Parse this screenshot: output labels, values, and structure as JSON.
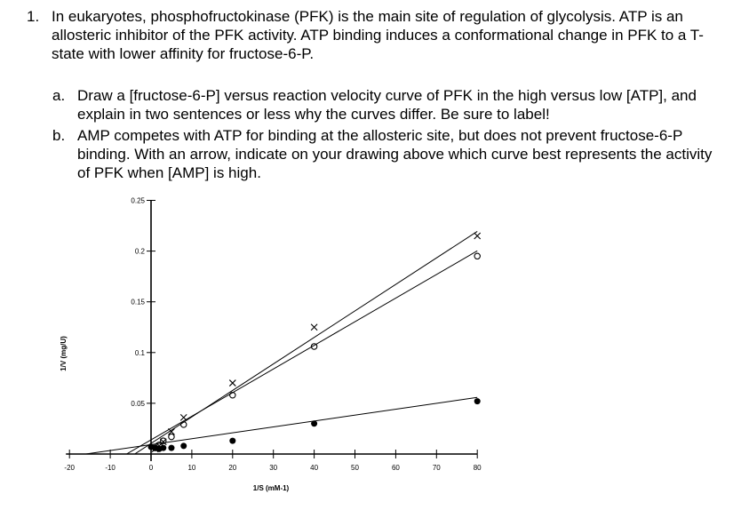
{
  "question": {
    "number": "1.",
    "text": "In eukaryotes, phosphofructokinase (PFK) is the main site of regulation of glycolysis. ATP is an allosteric inhibitor of the PFK activity. ATP binding induces a conformational change in PFK to a T-state with lower affinity for fructose-6-P.",
    "parts": [
      {
        "label": "a.",
        "text": "Draw a [fructose-6-P] versus reaction velocity curve of PFK in the high versus low [ATP], and explain in two sentences or less why the curves differ. Be sure to label!"
      },
      {
        "label": "b.",
        "text": "AMP competes with ATP for binding at the allosteric site, but does not prevent fructose-6-P binding. With an arrow, indicate on your drawing above which curve best represents the activity of PFK when [AMP] is high."
      }
    ]
  },
  "chart_data": {
    "type": "scatter",
    "title": "",
    "xlabel": "1/S (mM-1)",
    "ylabel": "1/V (mg/U)",
    "xlim": [
      -20,
      80
    ],
    "ylim": [
      0,
      0.25
    ],
    "x_ticks": [
      "-20",
      "-10",
      "0",
      "10",
      "20",
      "30",
      "40",
      "50",
      "60",
      "70",
      "80"
    ],
    "y_ticks": [
      "0.05",
      "0.1",
      "0.15",
      "0.2",
      "0.25"
    ],
    "series": [
      {
        "marker": "x",
        "points": [
          [
            1,
            0.005
          ],
          [
            2,
            0.008
          ],
          [
            3,
            0.012
          ],
          [
            5,
            0.022
          ],
          [
            8,
            0.036
          ],
          [
            20,
            0.07
          ],
          [
            40,
            0.125
          ],
          [
            80,
            0.215
          ]
        ],
        "fit": {
          "x0": -4,
          "slope": 0.00268,
          "intercept": 0.0015
        }
      },
      {
        "marker": "o",
        "points": [
          [
            1,
            0.006
          ],
          [
            2,
            0.009
          ],
          [
            3,
            0.013
          ],
          [
            5,
            0.017
          ],
          [
            8,
            0.029
          ],
          [
            20,
            0.058
          ],
          [
            40,
            0.106
          ],
          [
            80,
            0.195
          ]
        ],
        "fit": {
          "x0": -6,
          "slope": 0.00245,
          "intercept": 0.0007
        }
      },
      {
        "marker": "dot",
        "points": [
          [
            0,
            0.007
          ],
          [
            1,
            0.006
          ],
          [
            2,
            0.005
          ],
          [
            3,
            0.006
          ],
          [
            5,
            0.006
          ],
          [
            8,
            0.008
          ],
          [
            20,
            0.013
          ],
          [
            40,
            0.03
          ],
          [
            80,
            0.052
          ]
        ],
        "fit": {
          "x0": -16,
          "slope": 0.000586,
          "intercept": 0.0054
        }
      }
    ]
  }
}
